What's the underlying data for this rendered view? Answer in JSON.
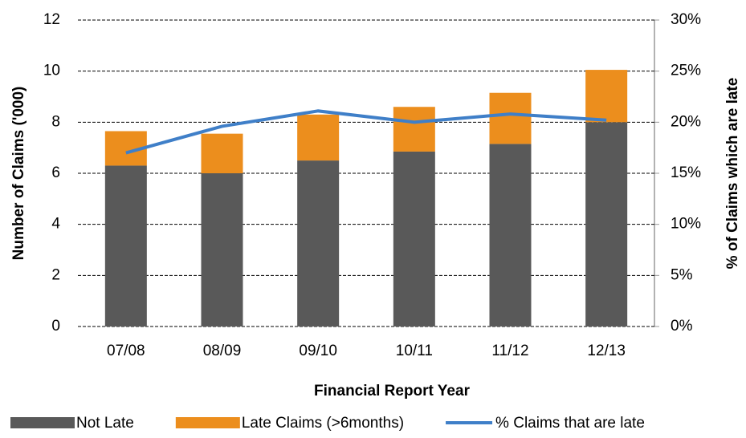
{
  "chart_data": {
    "type": "bar",
    "x_label": "Financial Report Year",
    "y_label": "Number of Claims ('000)",
    "y2_label": "% of Claims which are late",
    "categories": [
      "07/08",
      "08/09",
      "09/10",
      "10/11",
      "11/12",
      "12/13"
    ],
    "stacked": true,
    "series": [
      {
        "name": "Not Late",
        "color": "#595959",
        "values": [
          6.3,
          6.0,
          6.5,
          6.85,
          7.15,
          8.0
        ]
      },
      {
        "name": "Late Claims (>6months)",
        "color": "#ec8e1d",
        "values": [
          1.35,
          1.55,
          1.8,
          1.75,
          2.0,
          2.05
        ]
      },
      {
        "name": "% Claims that are late",
        "color": "#3f7fc8",
        "type": "line",
        "axis": "y2",
        "values": [
          17.0,
          19.6,
          21.1,
          20.0,
          20.8,
          20.2
        ]
      }
    ],
    "ylim": [
      0,
      12
    ],
    "yticks": [
      0,
      2,
      4,
      6,
      8,
      10,
      12
    ],
    "y2lim": [
      0,
      30
    ],
    "y2ticks": [
      {
        "value": 0,
        "label": "0%"
      },
      {
        "value": 5,
        "label": "5%"
      },
      {
        "value": 10,
        "label": "10%"
      },
      {
        "value": 15,
        "label": "15%"
      },
      {
        "value": 20,
        "label": "20%"
      },
      {
        "value": 25,
        "label": "25%"
      },
      {
        "value": 30,
        "label": "30%"
      }
    ],
    "grid": true,
    "legend": "bottom"
  }
}
